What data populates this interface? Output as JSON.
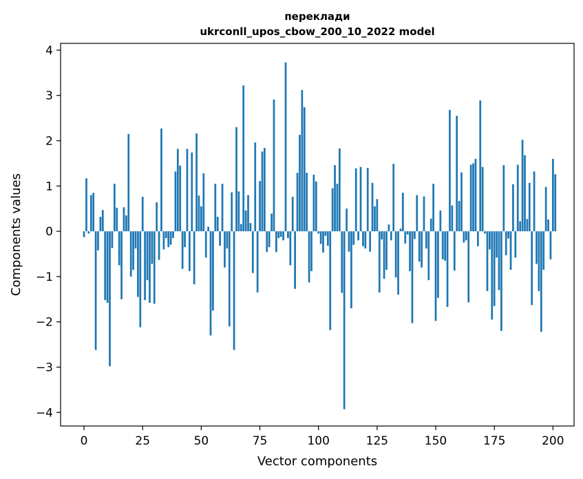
{
  "chart_data": {
    "type": "bar",
    "title_lines": [
      "переклади",
      "ukrconll_upos_cbow_200_10_2022 model"
    ],
    "xlabel": "Vector components",
    "ylabel": "Components values",
    "xlim": [
      -10,
      209
    ],
    "ylim": [
      -4.3,
      4.15
    ],
    "xticks": [
      0,
      25,
      50,
      75,
      100,
      125,
      150,
      175,
      200
    ],
    "yticks": [
      -4,
      -3,
      -2,
      -1,
      0,
      1,
      2,
      3,
      4
    ],
    "ytick_labels": [
      "−4",
      "−3",
      "−2",
      "−1",
      "0",
      "1",
      "2",
      "3",
      "4"
    ],
    "bar_color": "#1f77b4",
    "values": [
      -0.13,
      1.17,
      -0.05,
      0.8,
      0.85,
      -2.62,
      -0.42,
      0.32,
      0.47,
      -1.52,
      -1.58,
      -2.98,
      -0.37,
      1.05,
      0.52,
      -0.75,
      -1.5,
      0.53,
      0.35,
      2.15,
      -1.0,
      -0.85,
      -0.38,
      -1.45,
      -2.12,
      0.76,
      -1.52,
      -1.08,
      -1.58,
      -0.72,
      -1.6,
      0.64,
      -0.63,
      2.27,
      -0.4,
      -0.15,
      -0.35,
      -0.3,
      -0.15,
      1.32,
      1.82,
      1.45,
      -0.83,
      -0.35,
      1.82,
      -0.88,
      1.74,
      -1.17,
      2.16,
      0.79,
      0.55,
      1.28,
      -0.58,
      0.1,
      -2.3,
      -1.75,
      1.05,
      0.32,
      -0.32,
      1.05,
      -0.8,
      -0.38,
      -2.1,
      0.86,
      -2.62,
      2.3,
      0.88,
      0.16,
      3.22,
      0.46,
      0.8,
      0.18,
      -0.92,
      1.96,
      -1.35,
      1.11,
      1.76,
      1.84,
      -0.46,
      -0.35,
      0.39,
      2.91,
      -0.46,
      -0.15,
      -0.12,
      -0.2,
      3.73,
      -0.15,
      -0.75,
      0.76,
      -1.27,
      1.29,
      2.13,
      3.12,
      2.74,
      1.29,
      -1.13,
      -0.88,
      1.25,
      1.1,
      -0.05,
      -0.28,
      -0.47,
      -0.1,
      -0.32,
      -2.18,
      0.95,
      1.46,
      1.05,
      1.83,
      -1.36,
      -3.93,
      0.5,
      -0.45,
      -1.7,
      -0.3,
      1.39,
      -0.2,
      1.42,
      -0.33,
      -0.38,
      1.4,
      -0.45,
      1.07,
      0.55,
      0.71,
      -1.35,
      -0.18,
      -1.05,
      -0.85,
      0.15,
      -0.2,
      1.49,
      -1.02,
      -1.4,
      0.06,
      0.85,
      -0.27,
      -0.07,
      -0.88,
      -2.03,
      -0.17,
      0.8,
      -0.67,
      -0.8,
      0.77,
      -0.38,
      -1.08,
      0.28,
      1.05,
      -1.98,
      -1.47,
      0.46,
      -0.62,
      -0.65,
      -1.67,
      2.68,
      0.57,
      -0.87,
      2.55,
      0.67,
      1.3,
      -0.25,
      -0.2,
      -1.57,
      1.47,
      1.5,
      1.6,
      -0.33,
      2.89,
      1.42,
      -0.05,
      -1.32,
      -0.4,
      -1.95,
      -1.65,
      -0.58,
      -1.3,
      -2.2,
      1.46,
      -0.53,
      -0.16,
      -0.85,
      1.04,
      -0.58,
      1.47,
      0.22,
      2.02,
      1.68,
      0.27,
      1.07,
      -1.63,
      1.32,
      -0.72,
      -1.32,
      -2.22,
      -0.85,
      0.98,
      0.26,
      -0.62,
      1.6,
      1.26
    ]
  }
}
